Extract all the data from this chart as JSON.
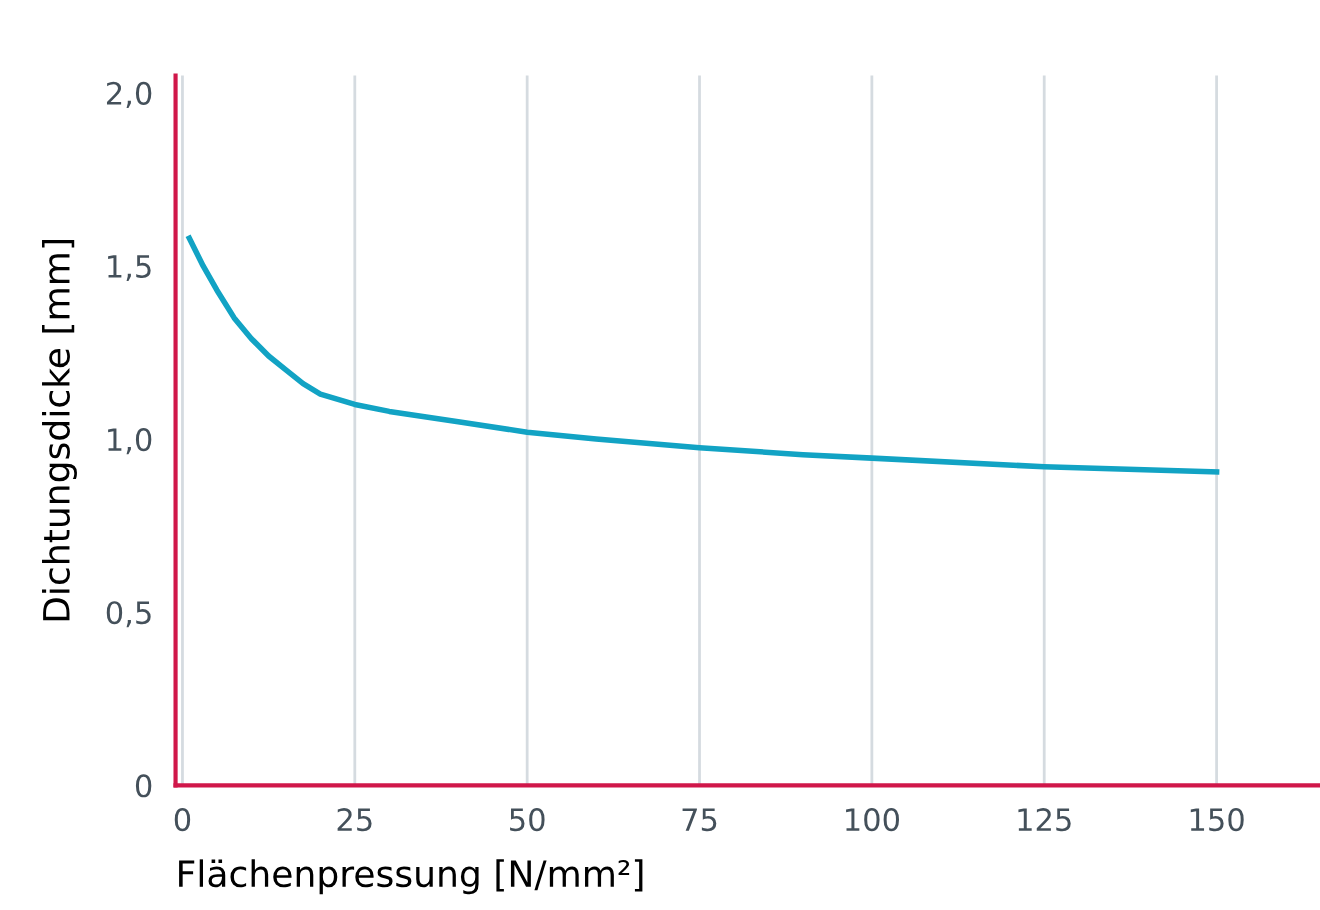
{
  "chart_data": {
    "type": "line",
    "xlabel": "Flächenpressung [N/mm²]",
    "ylabel": "Dichtungsdicke [mm]",
    "series": [
      {
        "color": "#12a3c4",
        "x": [
          1,
          3,
          5,
          7.5,
          10,
          12.5,
          15,
          17.5,
          20,
          25,
          30,
          40,
          50,
          60,
          75,
          90,
          100,
          125,
          150
        ],
        "values": [
          1.58,
          1.5,
          1.43,
          1.35,
          1.29,
          1.24,
          1.2,
          1.16,
          1.13,
          1.1,
          1.08,
          1.05,
          1.02,
          1.0,
          0.975,
          0.955,
          0.945,
          0.92,
          0.905
        ]
      }
    ],
    "xlim": [
      -1,
      165
    ],
    "xticks": [
      0,
      25,
      50,
      75,
      100,
      125,
      150
    ],
    "ylim": [
      0,
      2.05
    ],
    "yticks": [
      {
        "value": 0,
        "label": "0"
      },
      {
        "value": 0.5,
        "label": "0,5"
      },
      {
        "value": 1.0,
        "label": "1,0"
      },
      {
        "value": 1.5,
        "label": "1,5"
      },
      {
        "value": 2.0,
        "label": "2,0"
      }
    ],
    "grid": "x",
    "marker": "none",
    "line_style": "solid"
  }
}
